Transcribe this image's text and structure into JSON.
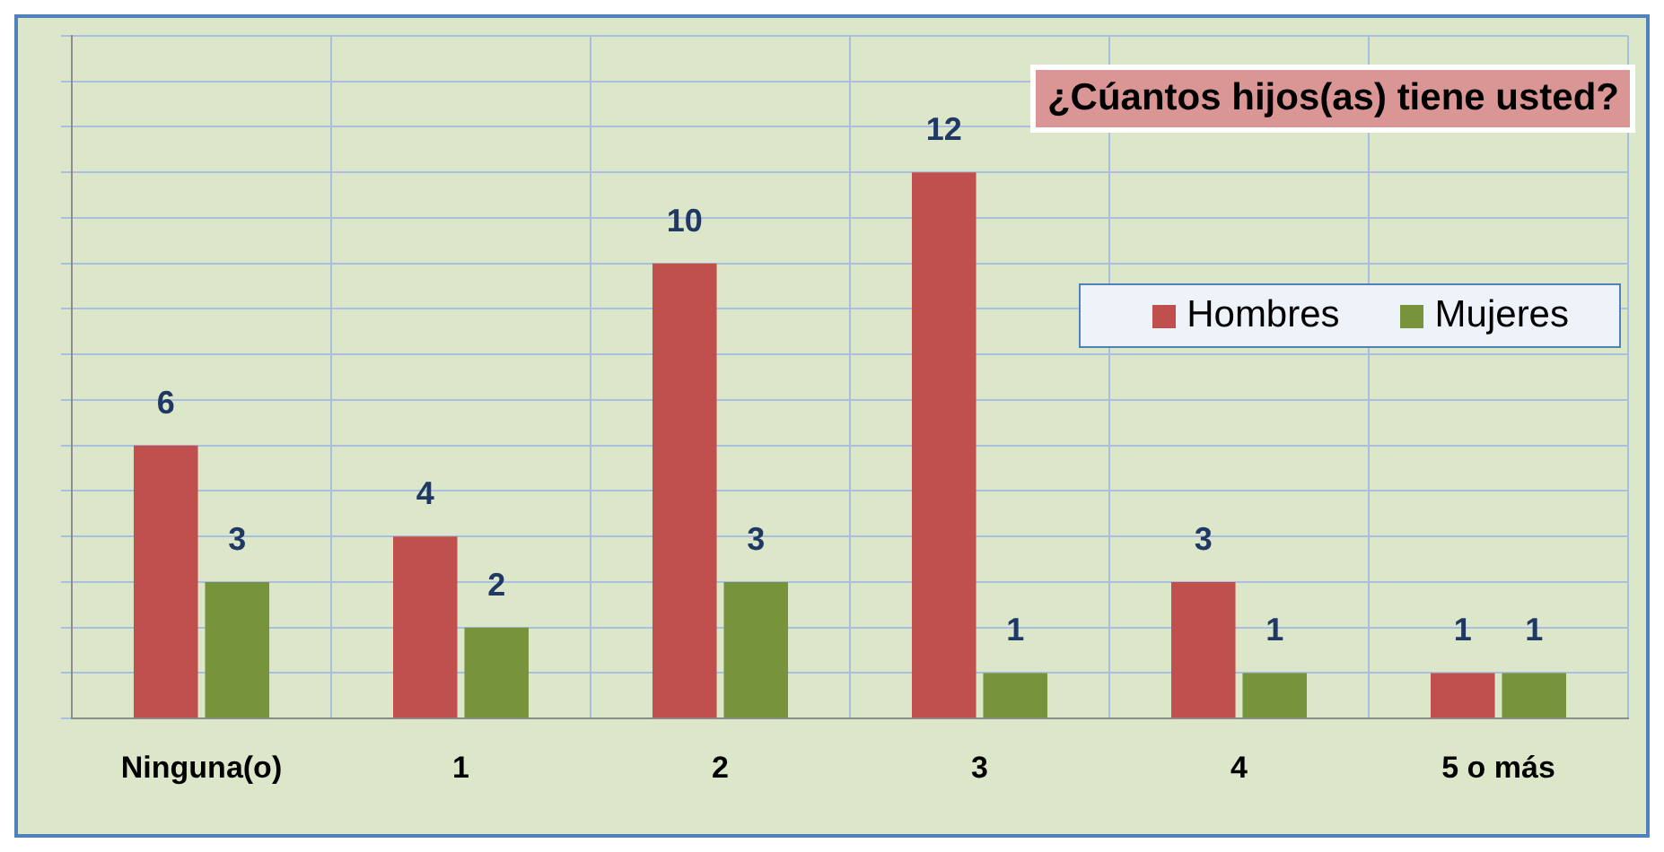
{
  "chart_data": {
    "type": "bar",
    "title": "¿Cúantos hijos(as) tiene usted?",
    "categories": [
      "Ninguna(o)",
      "1",
      "2",
      "3",
      "4",
      "5 o más"
    ],
    "series": [
      {
        "name": "Hombres",
        "color": "#c0504d",
        "values": [
          6,
          4,
          10,
          12,
          3,
          1
        ]
      },
      {
        "name": "Mujeres",
        "color": "#77933c",
        "values": [
          3,
          2,
          3,
          1,
          1,
          1
        ]
      }
    ],
    "ylim": [
      0,
      15
    ],
    "yticks": [
      {
        "value": 0,
        "label": null
      },
      {
        "value": 1,
        "label": null
      },
      {
        "value": 2,
        "label": null
      },
      {
        "value": 3,
        "label": null
      },
      {
        "value": 4,
        "label": null
      },
      {
        "value": 5,
        "label": null
      },
      {
        "value": 6,
        "label": null
      },
      {
        "value": 7,
        "label": null
      },
      {
        "value": 8,
        "label": null
      },
      {
        "value": 9,
        "label": null
      },
      {
        "value": 10,
        "label": null
      },
      {
        "value": 11,
        "label": null
      },
      {
        "value": 12,
        "label": null
      },
      {
        "value": 13,
        "label": null
      },
      {
        "value": 14,
        "label": null
      },
      {
        "value": 15,
        "label": null
      }
    ],
    "tick_labels": "x",
    "grid": true,
    "legend": "top right",
    "data_labels": true
  }
}
